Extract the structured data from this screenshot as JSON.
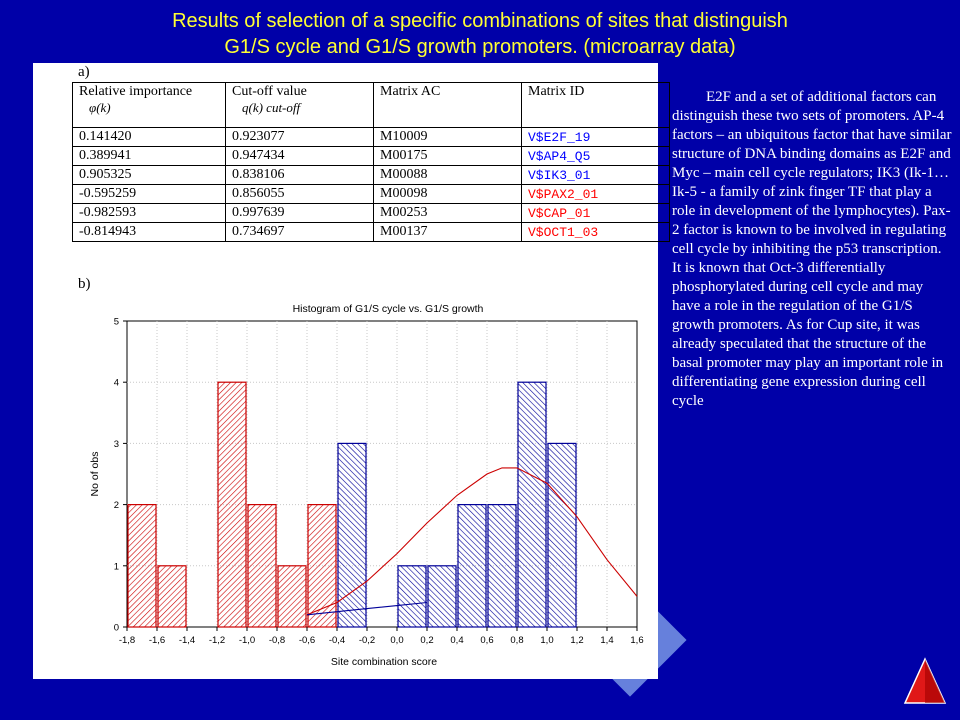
{
  "title": {
    "line1": "Results of selection of a specific combinations of sites that distinguish",
    "line2": "G1/S cycle and G1/S growth promoters. (microarray data)"
  },
  "panel_a_label": "a)",
  "panel_b_label": "b)",
  "table": {
    "headers": [
      "Relative importance",
      "Cut-off value",
      "Matrix AC",
      "Matrix ID"
    ],
    "header_symbols": [
      "φ(k)",
      "q(k) cut-off"
    ],
    "rows": [
      {
        "importance": "0.141420",
        "cutoff": "0.923077",
        "ac": "M10009",
        "id": "V$E2F_19",
        "color": "#0000ff"
      },
      {
        "importance": "0.389941",
        "cutoff": "0.947434",
        "ac": "M00175",
        "id": "V$AP4_Q5",
        "color": "#0000ff"
      },
      {
        "importance": "0.905325",
        "cutoff": "0.838106",
        "ac": "M00088",
        "id": "V$IK3_01",
        "color": "#0000ff"
      },
      {
        "importance": "-0.595259",
        "cutoff": "0.856055",
        "ac": "M00098",
        "id": "V$PAX2_01",
        "color": "#ff0000"
      },
      {
        "importance": "-0.982593",
        "cutoff": "0.997639",
        "ac": "M00253",
        "id": "V$CAP_01",
        "color": "#ff0000"
      },
      {
        "importance": "-0.814943",
        "cutoff": "0.734697",
        "ac": "M00137",
        "id": "V$OCT1_03",
        "color": "#ff0000"
      }
    ]
  },
  "chart_data": {
    "type": "bar",
    "title": "Histogram of G1/S cycle vs. G1/S growth",
    "xlabel": "Site combination score",
    "ylabel": "No of obs",
    "xlim": [
      -1.8,
      1.6
    ],
    "ylim": [
      0,
      5
    ],
    "x_ticks": [
      "-1,8",
      "-1,6",
      "-1,4",
      "-1,2",
      "-1,0",
      "-0,8",
      "-0,6",
      "-0,4",
      "-0,2",
      "0,0",
      "0,2",
      "0,4",
      "0,6",
      "0,8",
      "1,0",
      "1,2",
      "1,4",
      "1,6"
    ],
    "y_ticks": [
      "0",
      "1",
      "2",
      "3",
      "4",
      "5"
    ],
    "bin_width": 0.2,
    "series": [
      {
        "color": "#cc0000",
        "bins": [
          {
            "x0": -1.8,
            "value": 2
          },
          {
            "x0": -1.6,
            "value": 1
          },
          {
            "x0": -1.2,
            "value": 4
          },
          {
            "x0": -1.0,
            "value": 2
          },
          {
            "x0": -0.8,
            "value": 1
          },
          {
            "x0": -0.6,
            "value": 2
          }
        ]
      },
      {
        "color": "#000099",
        "bins": [
          {
            "x0": -0.4,
            "value": 3
          },
          {
            "x0": 0.0,
            "value": 1
          },
          {
            "x0": 0.2,
            "value": 1
          },
          {
            "x0": 0.4,
            "value": 2
          },
          {
            "x0": 0.6,
            "value": 2
          },
          {
            "x0": 0.8,
            "value": 4
          },
          {
            "x0": 1.0,
            "value": 3
          }
        ]
      }
    ],
    "fit_curves": [
      {
        "color": "#cc0000",
        "points": [
          [
            -0.6,
            0.2
          ],
          [
            -0.4,
            0.4
          ],
          [
            -0.2,
            0.75
          ],
          [
            0.0,
            1.2
          ],
          [
            0.2,
            1.7
          ],
          [
            0.4,
            2.15
          ],
          [
            0.6,
            2.5
          ],
          [
            0.7,
            2.6
          ],
          [
            0.8,
            2.6
          ],
          [
            1.0,
            2.35
          ],
          [
            1.2,
            1.8
          ],
          [
            1.4,
            1.1
          ],
          [
            1.6,
            0.5
          ]
        ]
      },
      {
        "color": "#000099",
        "points": [
          [
            -0.6,
            0.2
          ],
          [
            -0.4,
            0.25
          ],
          [
            -0.2,
            0.3
          ],
          [
            0.0,
            0.35
          ],
          [
            0.2,
            0.4
          ]
        ]
      }
    ]
  },
  "side_text": "E2F and a set of additional factors can distinguish these two sets of promoters. AP-4 factors – an ubiquitous factor that have similar structure of DNA binding domains as E2F and Myc – main cell cycle regulators; IK3 (Ik-1…Ik-5 - a family of zink finger TF that play a role in development of the lymphocytes). Pax-2 factor is known to be involved in regulating cell cycle by inhibiting the p53 transcription. It is known that Oct-3 differentially phosphorylated during cell cycle and may have a role in the regulation of the G1/S growth promoters. As for Cup site, it was already speculated that the structure of the basal promoter may play an important role in differentiating gene expression during cell cycle"
}
